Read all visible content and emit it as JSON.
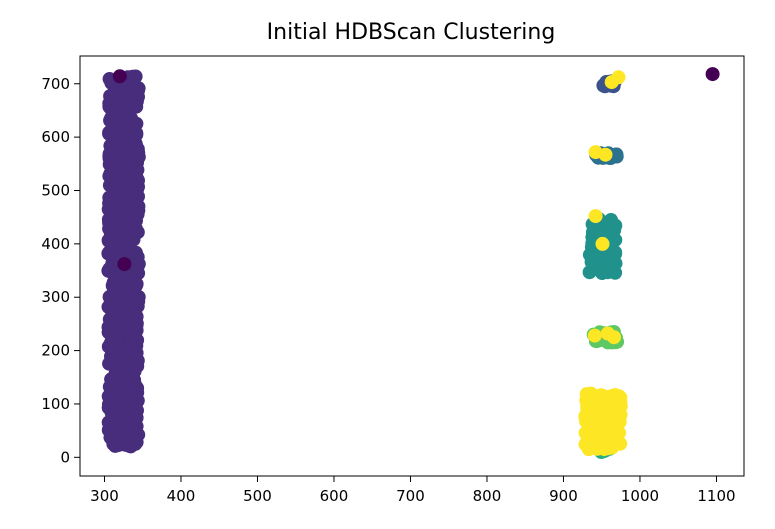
{
  "chart_data": {
    "type": "scatter",
    "title": "Initial HDBScan Clustering",
    "xlabel": "",
    "ylabel": "",
    "xlim": [
      268,
      1136
    ],
    "ylim": [
      -35,
      752
    ],
    "x_ticks": [
      300,
      400,
      500,
      600,
      700,
      800,
      900,
      1000,
      1100
    ],
    "y_ticks": [
      0,
      100,
      200,
      300,
      400,
      500,
      600,
      700
    ],
    "grid": false,
    "legend": "none",
    "colormap": "viridis",
    "colors": {
      "noise": "#440154",
      "cluster_1": "#472d7b",
      "cluster_2": "#3b528b",
      "cluster_3": "#2c728e",
      "cluster_4": "#21918c",
      "cluster_5": "#28ae80",
      "cluster_6": "#5ec962",
      "cluster_7": "#fde725"
    },
    "series": [
      {
        "group": "cluster_1",
        "color": "#472d7b",
        "region": {
          "x": [
            305,
            345
          ],
          "y": [
            20,
            715
          ]
        }
      },
      {
        "group": "cluster_2",
        "color": "#3b528b",
        "region": {
          "x": [
            952,
            968
          ],
          "y": [
            695,
            705
          ]
        }
      },
      {
        "group": "cluster_3",
        "color": "#2c728e",
        "region": {
          "x": [
            940,
            970
          ],
          "y": [
            560,
            570
          ]
        }
      },
      {
        "group": "cluster_4",
        "color": "#21918c",
        "region": {
          "x": [
            934,
            968
          ],
          "y": [
            345,
            455
          ]
        }
      },
      {
        "group": "cluster_5",
        "color": "#28ae80",
        "region": {
          "x": [
            948,
            962
          ],
          "y": [
            10,
            30
          ]
        }
      },
      {
        "group": "cluster_6",
        "color": "#5ec962",
        "region": {
          "x": [
            938,
            972
          ],
          "y": [
            215,
            235
          ]
        }
      },
      {
        "group": "cluster_7",
        "color": "#fde725",
        "region": {
          "x": [
            928,
            976
          ],
          "y": [
            15,
            120
          ]
        }
      },
      {
        "group": "cluster_7_outliers",
        "color": "#fde725",
        "points": [
          [
            963,
            703
          ],
          [
            972,
            712
          ],
          [
            942,
            572
          ],
          [
            955,
            567
          ],
          [
            942,
            452
          ],
          [
            951,
            400
          ],
          [
            941,
            228
          ],
          [
            958,
            232
          ],
          [
            966,
            225
          ]
        ]
      },
      {
        "group": "noise",
        "color": "#440154",
        "points": [
          [
            320,
            714
          ],
          [
            326,
            362
          ],
          [
            1095,
            718
          ]
        ]
      }
    ]
  }
}
